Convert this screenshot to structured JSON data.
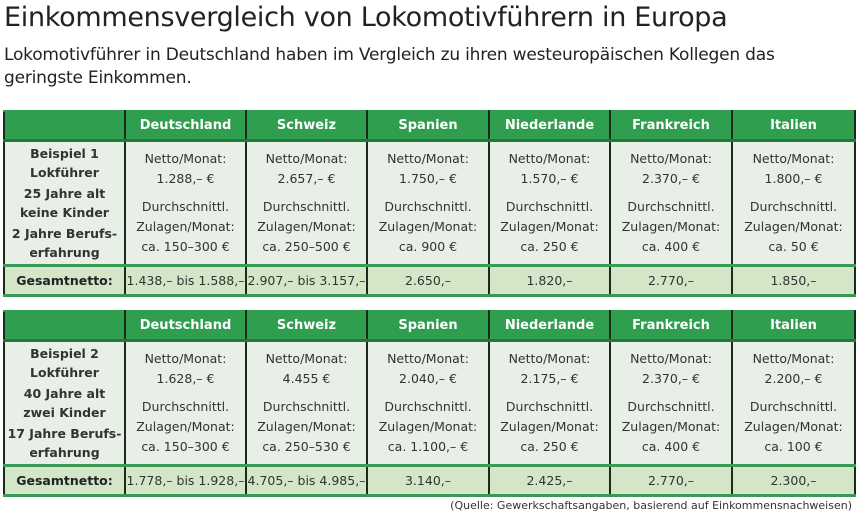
{
  "title": "Einkommensvergleich von Lokomotivführern in Europa",
  "subtitle": "Lokomotivführer in Deutschland haben im Vergleich zu ihren westeuropäischen Kollegen das geringste Einkommen.",
  "colors": {
    "header": "#2f9e4f",
    "body": "#e7efe7",
    "total": "#d3e7c8"
  },
  "countries": [
    "Deutschland",
    "Schweiz",
    "Spanien",
    "Niederlande",
    "Frankreich",
    "Italien"
  ],
  "netto_label": "Netto/Monat:",
  "zulagen_label_1": "Durchschnittl.",
  "zulagen_label_2": "Zulagen/Monat:",
  "total_label": "Gesamtnetto:",
  "tables": [
    {
      "profile": [
        "Beispiel 1",
        "Lokführer",
        "25 Jahre alt",
        "keine Kinder",
        "2 Jahre Berufs-",
        "erfahrung"
      ],
      "netto": [
        "1.288,– €",
        "2.657,– €",
        "1.750,– €",
        "1.570,– €",
        "2.370,– €",
        "1.800,– €"
      ],
      "zulagen": [
        "ca. 150–300 €",
        "ca. 250–500 €",
        "ca. 900 €",
        "ca. 250 €",
        "ca. 400 €",
        "ca. 50 €"
      ],
      "gesamt": [
        "1.438,– bis 1.588,–",
        "2.907,– bis 3.157,–",
        "2.650,–",
        "1.820,–",
        "2.770,–",
        "1.850,–"
      ]
    },
    {
      "profile": [
        "Beispiel 2",
        "Lokführer",
        "40 Jahre alt",
        "zwei Kinder",
        "17 Jahre Berufs-",
        "erfahrung"
      ],
      "netto": [
        "1.628,– €",
        "4.455 €",
        "2.040,– €",
        "2.175,– €",
        "2.370,– €",
        "2.200,– €"
      ],
      "zulagen": [
        "ca. 150–300 €",
        "ca. 250–530 €",
        "ca. 1.100,– €",
        "ca. 250 €",
        "ca. 400 €",
        "ca. 100 €"
      ],
      "gesamt": [
        "1.778,– bis 1.928,–",
        "4.705,– bis 4.985,–",
        "3.140,–",
        "2.425,–",
        "2.770,–",
        "2.300,–"
      ]
    }
  ],
  "source": "(Quelle: Gewerkschaftsangaben, basierend auf Einkommensnachweisen)"
}
